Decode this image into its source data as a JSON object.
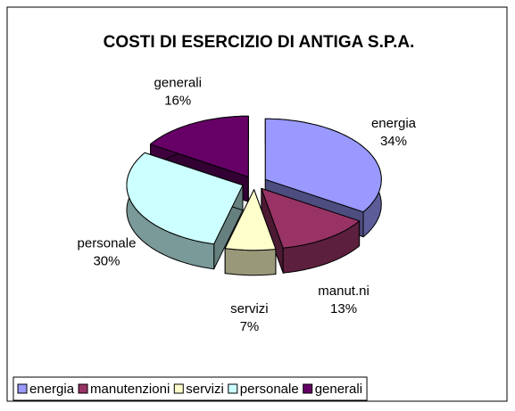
{
  "chart_data": {
    "type": "pie3d",
    "title": "COSTI DI ESERCIZIO DI ANTIGA S.P.A.",
    "categories": [
      "energia",
      "manutenzioni",
      "servizi",
      "personale",
      "generali"
    ],
    "data_label_names": [
      "energia",
      "manut.ni",
      "servizi",
      "personale",
      "generali"
    ],
    "values": [
      34,
      13,
      7,
      30,
      16
    ],
    "value_labels": [
      "34%",
      "13%",
      "7%",
      "30%",
      "16%"
    ],
    "colors": [
      "#9999ff",
      "#993366",
      "#ffffcc",
      "#ccffff",
      "#660066"
    ],
    "legend": "bottom"
  }
}
